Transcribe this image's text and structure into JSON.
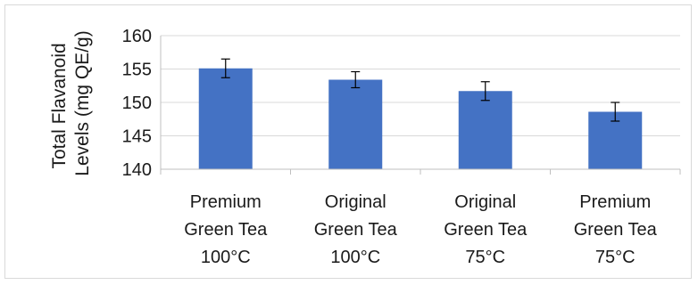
{
  "chart_data": {
    "type": "bar",
    "ylabel_lines": [
      "Total Flavanoid",
      "Levels (mg QE/g)"
    ],
    "categories": [
      [
        "Premium",
        "Green Tea",
        "100°C"
      ],
      [
        "Original",
        "Green Tea",
        "100°C"
      ],
      [
        "Original",
        "Green Tea",
        "75°C"
      ],
      [
        "Premium",
        "Green Tea",
        "75°C"
      ]
    ],
    "values": [
      155.1,
      153.4,
      151.7,
      148.6
    ],
    "error": [
      1.4,
      1.2,
      1.4,
      1.4
    ],
    "ylim": [
      140,
      160
    ],
    "yticks": [
      "140",
      "145",
      "150",
      "155",
      "160"
    ],
    "grid": true,
    "legend": "none",
    "colors": {
      "bar": "#4472c4",
      "grid": "#d9d9d9",
      "axis": "#bfbfbf",
      "error": "#000000"
    }
  }
}
